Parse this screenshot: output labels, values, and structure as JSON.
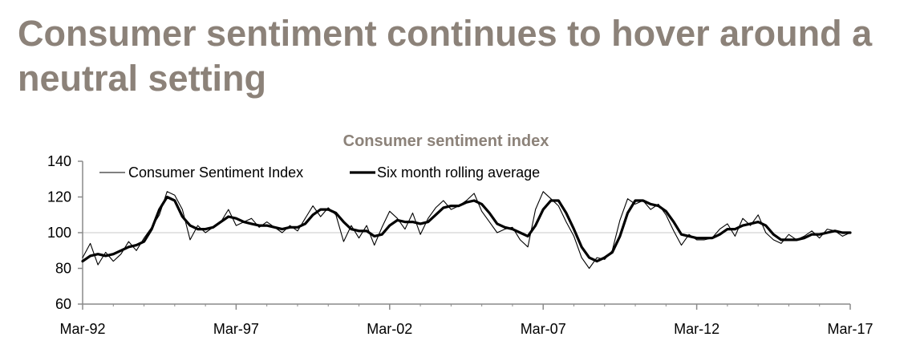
{
  "slide": {
    "title": "Consumer sentiment continues to hover around a neutral setting"
  },
  "chart_data": {
    "type": "line",
    "title": "Consumer sentiment index",
    "xlabel": "",
    "ylabel": "",
    "ylim": [
      60,
      140
    ],
    "yticks": [
      60,
      80,
      100,
      120,
      140
    ],
    "x_tick_labels": [
      "Mar-92",
      "Mar-97",
      "Mar-02",
      "Mar-07",
      "Mar-12",
      "Mar-17"
    ],
    "x_range": [
      "1992-03",
      "2017-03"
    ],
    "reference_line": 100,
    "legend_position": "top-left",
    "series": [
      {
        "name": "Consumer Sentiment Index",
        "style": "thin",
        "color": "#000000",
        "points": [
          [
            "1992-03",
            86
          ],
          [
            "1992-06",
            94
          ],
          [
            "1992-09",
            82
          ],
          [
            "1992-12",
            89
          ],
          [
            "1993-03",
            84
          ],
          [
            "1993-06",
            88
          ],
          [
            "1993-09",
            95
          ],
          [
            "1993-12",
            90
          ],
          [
            "1994-03",
            97
          ],
          [
            "1994-06",
            103
          ],
          [
            "1994-09",
            110
          ],
          [
            "1994-12",
            123
          ],
          [
            "1995-03",
            121
          ],
          [
            "1995-06",
            113
          ],
          [
            "1995-09",
            96
          ],
          [
            "1995-12",
            104
          ],
          [
            "1996-03",
            100
          ],
          [
            "1996-06",
            103
          ],
          [
            "1996-09",
            106
          ],
          [
            "1996-12",
            113
          ],
          [
            "1997-03",
            104
          ],
          [
            "1997-06",
            106
          ],
          [
            "1997-09",
            108
          ],
          [
            "1997-12",
            103
          ],
          [
            "1998-03",
            106
          ],
          [
            "1998-06",
            103
          ],
          [
            "1998-09",
            100
          ],
          [
            "1998-12",
            104
          ],
          [
            "1999-03",
            101
          ],
          [
            "1999-06",
            108
          ],
          [
            "1999-09",
            115
          ],
          [
            "1999-12",
            109
          ],
          [
            "2000-03",
            114
          ],
          [
            "2000-06",
            110
          ],
          [
            "2000-09",
            95
          ],
          [
            "2000-12",
            104
          ],
          [
            "2001-03",
            97
          ],
          [
            "2001-06",
            104
          ],
          [
            "2001-09",
            93
          ],
          [
            "2001-12",
            103
          ],
          [
            "2002-03",
            112
          ],
          [
            "2002-06",
            108
          ],
          [
            "2002-09",
            102
          ],
          [
            "2002-12",
            111
          ],
          [
            "2003-03",
            99
          ],
          [
            "2003-06",
            108
          ],
          [
            "2003-09",
            114
          ],
          [
            "2003-12",
            118
          ],
          [
            "2004-03",
            113
          ],
          [
            "2004-06",
            115
          ],
          [
            "2004-09",
            118
          ],
          [
            "2004-12",
            122
          ],
          [
            "2005-03",
            112
          ],
          [
            "2005-06",
            106
          ],
          [
            "2005-09",
            100
          ],
          [
            "2005-12",
            102
          ],
          [
            "2006-03",
            103
          ],
          [
            "2006-06",
            96
          ],
          [
            "2006-09",
            92
          ],
          [
            "2006-12",
            113
          ],
          [
            "2007-03",
            123
          ],
          [
            "2007-06",
            119
          ],
          [
            "2007-09",
            115
          ],
          [
            "2007-12",
            106
          ],
          [
            "2008-03",
            98
          ],
          [
            "2008-06",
            86
          ],
          [
            "2008-09",
            80
          ],
          [
            "2008-12",
            86
          ],
          [
            "2009-03",
            85
          ],
          [
            "2009-06",
            90
          ],
          [
            "2009-09",
            107
          ],
          [
            "2009-12",
            119
          ],
          [
            "2010-03",
            116
          ],
          [
            "2010-06",
            118
          ],
          [
            "2010-09",
            113
          ],
          [
            "2010-12",
            116
          ],
          [
            "2011-03",
            110
          ],
          [
            "2011-06",
            101
          ],
          [
            "2011-09",
            93
          ],
          [
            "2011-12",
            99
          ],
          [
            "2012-03",
            96
          ],
          [
            "2012-06",
            96
          ],
          [
            "2012-09",
            97
          ],
          [
            "2012-12",
            102
          ],
          [
            "2013-03",
            105
          ],
          [
            "2013-06",
            98
          ],
          [
            "2013-09",
            108
          ],
          [
            "2013-12",
            104
          ],
          [
            "2014-03",
            110
          ],
          [
            "2014-06",
            100
          ],
          [
            "2014-09",
            96
          ],
          [
            "2014-12",
            94
          ],
          [
            "2015-03",
            99
          ],
          [
            "2015-06",
            96
          ],
          [
            "2015-09",
            98
          ],
          [
            "2015-12",
            101
          ],
          [
            "2016-03",
            97
          ],
          [
            "2016-06",
            102
          ],
          [
            "2016-09",
            101
          ],
          [
            "2016-12",
            98
          ],
          [
            "2017-03",
            100
          ]
        ]
      },
      {
        "name": "Six month rolling average",
        "style": "thick",
        "color": "#000000",
        "points": [
          [
            "1992-03",
            84
          ],
          [
            "1992-06",
            87
          ],
          [
            "1992-09",
            88
          ],
          [
            "1992-12",
            87
          ],
          [
            "1993-03",
            88
          ],
          [
            "1993-06",
            90
          ],
          [
            "1993-09",
            92
          ],
          [
            "1993-12",
            93
          ],
          [
            "1994-03",
            95
          ],
          [
            "1994-06",
            102
          ],
          [
            "1994-09",
            113
          ],
          [
            "1994-12",
            120
          ],
          [
            "1995-03",
            118
          ],
          [
            "1995-06",
            109
          ],
          [
            "1995-09",
            104
          ],
          [
            "1995-12",
            102
          ],
          [
            "1996-03",
            102
          ],
          [
            "1996-06",
            103
          ],
          [
            "1996-09",
            106
          ],
          [
            "1996-12",
            109
          ],
          [
            "1997-03",
            108
          ],
          [
            "1997-06",
            106
          ],
          [
            "1997-09",
            105
          ],
          [
            "1997-12",
            104
          ],
          [
            "1998-03",
            104
          ],
          [
            "1998-06",
            103
          ],
          [
            "1998-09",
            102
          ],
          [
            "1998-12",
            103
          ],
          [
            "1999-03",
            103
          ],
          [
            "1999-06",
            105
          ],
          [
            "1999-09",
            110
          ],
          [
            "1999-12",
            113
          ],
          [
            "2000-03",
            113
          ],
          [
            "2000-06",
            111
          ],
          [
            "2000-09",
            106
          ],
          [
            "2000-12",
            102
          ],
          [
            "2001-03",
            101
          ],
          [
            "2001-06",
            101
          ],
          [
            "2001-09",
            98
          ],
          [
            "2001-12",
            99
          ],
          [
            "2002-03",
            104
          ],
          [
            "2002-06",
            107
          ],
          [
            "2002-09",
            106
          ],
          [
            "2002-12",
            106
          ],
          [
            "2003-03",
            105
          ],
          [
            "2003-06",
            106
          ],
          [
            "2003-09",
            110
          ],
          [
            "2003-12",
            114
          ],
          [
            "2004-03",
            115
          ],
          [
            "2004-06",
            115
          ],
          [
            "2004-09",
            117
          ],
          [
            "2004-12",
            118
          ],
          [
            "2005-03",
            116
          ],
          [
            "2005-06",
            111
          ],
          [
            "2005-09",
            105
          ],
          [
            "2005-12",
            103
          ],
          [
            "2006-03",
            102
          ],
          [
            "2006-06",
            100
          ],
          [
            "2006-09",
            98
          ],
          [
            "2006-12",
            104
          ],
          [
            "2007-03",
            113
          ],
          [
            "2007-06",
            118
          ],
          [
            "2007-09",
            118
          ],
          [
            "2007-12",
            111
          ],
          [
            "2008-03",
            102
          ],
          [
            "2008-06",
            92
          ],
          [
            "2008-09",
            86
          ],
          [
            "2008-12",
            84
          ],
          [
            "2009-03",
            86
          ],
          [
            "2009-06",
            89
          ],
          [
            "2009-09",
            98
          ],
          [
            "2009-12",
            111
          ],
          [
            "2010-03",
            118
          ],
          [
            "2010-06",
            118
          ],
          [
            "2010-09",
            116
          ],
          [
            "2010-12",
            115
          ],
          [
            "2011-03",
            112
          ],
          [
            "2011-06",
            106
          ],
          [
            "2011-09",
            99
          ],
          [
            "2011-12",
            98
          ],
          [
            "2012-03",
            97
          ],
          [
            "2012-06",
            97
          ],
          [
            "2012-09",
            97
          ],
          [
            "2012-12",
            99
          ],
          [
            "2013-03",
            102
          ],
          [
            "2013-06",
            102
          ],
          [
            "2013-09",
            104
          ],
          [
            "2013-12",
            105
          ],
          [
            "2014-03",
            106
          ],
          [
            "2014-06",
            104
          ],
          [
            "2014-09",
            99
          ],
          [
            "2014-12",
            96
          ],
          [
            "2015-03",
            96
          ],
          [
            "2015-06",
            96
          ],
          [
            "2015-09",
            97
          ],
          [
            "2015-12",
            99
          ],
          [
            "2016-03",
            99
          ],
          [
            "2016-06",
            100
          ],
          [
            "2016-09",
            101
          ],
          [
            "2016-12",
            100
          ],
          [
            "2017-03",
            100
          ]
        ]
      }
    ]
  }
}
